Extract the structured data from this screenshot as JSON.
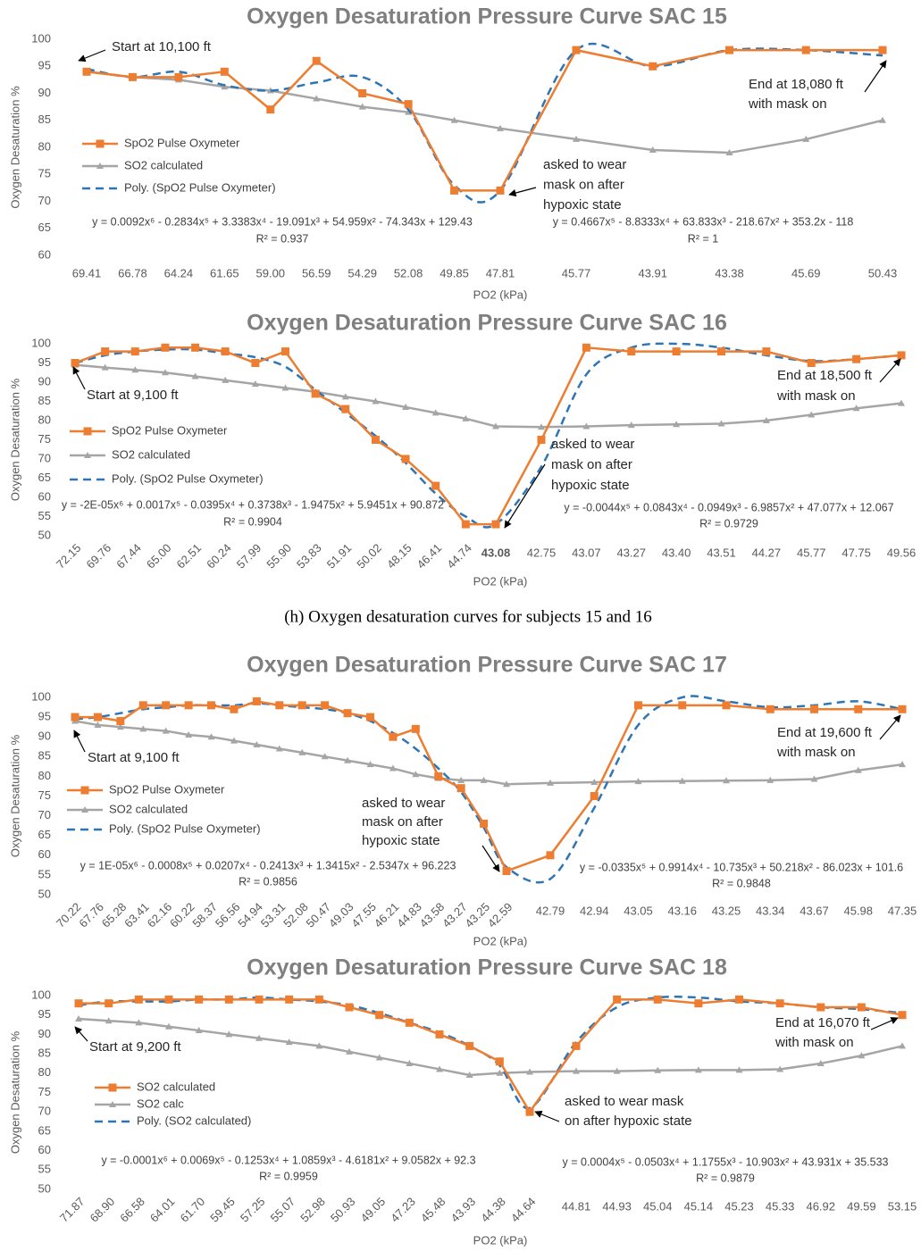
{
  "caption": "(h) Oxygen desaturation curves for subjects 15 and 16",
  "chart_data": [
    {
      "type": "line",
      "title": "Oxygen Desaturation Pressure Curve SAC 15",
      "x_label": "PO2 (kPa)",
      "y_label": "Oxygen Desaturation %",
      "categories": [
        "69.41",
        "66.78",
        "64.24",
        "61.65",
        "59.00",
        "56.59",
        "54.29",
        "52.08",
        "49.85",
        "47.81",
        "45.77",
        "43.91",
        "43.38",
        "45.69",
        "50.43"
      ],
      "ylim": [
        60,
        100
      ],
      "yticks": [
        60,
        65,
        70,
        75,
        80,
        85,
        90,
        95,
        100
      ],
      "grid": false,
      "series": [
        {
          "name": "SpO2 Pulse Oxymeter",
          "color": "#ed7d31",
          "marker": "square",
          "values": [
            94,
            93,
            93,
            94,
            87,
            96,
            90,
            88,
            72,
            72,
            98,
            95,
            98,
            98,
            98
          ]
        },
        {
          "name": "SO2 calculated",
          "color": "#a5a5a5",
          "marker": "triangle",
          "values": [
            94,
            93,
            92.5,
            91.2,
            90.5,
            89,
            87.5,
            86.5,
            85,
            83.5,
            81.5,
            79.5,
            79,
            81.5,
            85
          ]
        },
        {
          "name": "Poly. (SpO2 Pulse Oxymeter)",
          "color": "#2e75b6",
          "dashed": true,
          "smooth": true,
          "values": [
            94.5,
            93,
            94,
            91.5,
            90.5,
            92,
            93,
            87,
            73,
            72,
            98,
            95,
            98,
            98,
            97
          ]
        }
      ],
      "annotations": [
        [
          "Start at 10,100 ft"
        ],
        [
          "End at 18,080 ft",
          "with mask on"
        ],
        [
          "asked to wear",
          "mask on after",
          "hypoxic state"
        ]
      ],
      "equations": [
        {
          "equation": "y = 0.0092x⁶ - 0.2834x⁵ + 3.3383x⁴ - 19.091x³ + 54.959x² - 74.343x + 129.43",
          "r2": "R² = 0.937"
        },
        {
          "equation": "y = 0.4667x⁵ - 8.8333x⁴ + 63.833x³ - 218.67x² + 353.2x - 118",
          "r2": "R² = 1"
        }
      ]
    },
    {
      "type": "line",
      "title": "Oxygen Desaturation Pressure Curve SAC 16",
      "x_label": "PO2 (kPa)",
      "y_label": "Oxygen Desaturation %",
      "categories": [
        "72.15",
        "69.76",
        "67.44",
        "65.00",
        "62.51",
        "60.24",
        "57.99",
        "55.90",
        "53.83",
        "51.91",
        "50.02",
        "48.15",
        "46.41",
        "44.74",
        "43.08",
        "42.75",
        "43.07",
        "43.27",
        "43.40",
        "43.51",
        "44.27",
        "45.77",
        "47.75",
        "49.56"
      ],
      "ylim": [
        50,
        100
      ],
      "yticks": [
        50,
        55,
        60,
        65,
        70,
        75,
        80,
        85,
        90,
        95,
        100
      ],
      "grid": false,
      "series": [
        {
          "name": "SpO2 Pulse Oxymeter",
          "color": "#ed7d31",
          "marker": "square",
          "values": [
            95,
            98,
            98,
            99,
            99,
            98,
            95,
            98,
            87,
            83,
            75,
            70,
            63,
            53,
            53,
            75,
            99,
            98,
            98,
            98,
            98,
            95,
            96,
            97
          ]
        },
        {
          "name": "SO2 calculated",
          "color": "#a5a5a5",
          "marker": "triangle",
          "values": [
            94.5,
            93.8,
            93.2,
            92.5,
            91.5,
            90.5,
            89.5,
            88.5,
            87.5,
            86.2,
            85,
            83.5,
            82,
            80.5,
            78.5,
            78.3,
            78.5,
            78.8,
            79,
            79.2,
            80,
            81.5,
            83.2,
            84.5
          ]
        },
        {
          "name": "Poly. (SpO2 Pulse Oxymeter)",
          "color": "#2e75b6",
          "dashed": true,
          "smooth": true,
          "values": [
            95,
            97,
            98,
            98.5,
            98.5,
            97.5,
            96.5,
            94,
            88,
            82,
            76,
            69,
            61,
            55,
            53,
            68,
            92,
            99,
            100,
            99,
            97,
            95.5,
            96,
            97
          ]
        }
      ],
      "annotations": [
        [
          "Start at 9,100 ft"
        ],
        [
          "End at 18,500 ft",
          "with mask on"
        ],
        [
          "asked to wear",
          "mask on after",
          "hypoxic state"
        ]
      ],
      "equations": [
        {
          "equation": "y = -2E-05x⁶ + 0.0017x⁵ - 0.0395x⁴ + 0.3738x³ - 1.9475x² + 5.9451x + 90.872",
          "r2": "R² = 0.9904"
        },
        {
          "equation": "y = -0.0044x⁵ + 0.0843x⁴ - 0.0949x³ - 6.9857x² + 47.077x + 12.067",
          "r2": "R² = 0.9729"
        }
      ]
    },
    {
      "type": "line",
      "title": "Oxygen Desaturation Pressure Curve SAC 17",
      "x_label": "PO2 (kPa)",
      "y_label": "Oxygen Desaturation %",
      "categories": [
        "70.22",
        "67.76",
        "65.28",
        "63.41",
        "62.16",
        "60.22",
        "58.37",
        "56.56",
        "54.94",
        "53.31",
        "52.08",
        "50.47",
        "49.03",
        "47.55",
        "46.21",
        "44.83",
        "43.58",
        "43.27",
        "43.25",
        "42.59",
        "42.79",
        "42.94",
        "43.05",
        "43.16",
        "43.25",
        "43.34",
        "43.67",
        "45.98",
        "47.35"
      ],
      "ylim": [
        50,
        100
      ],
      "yticks": [
        50,
        55,
        60,
        65,
        70,
        75,
        80,
        85,
        90,
        95,
        100
      ],
      "grid": false,
      "series": [
        {
          "name": "SpO2 Pulse Oxymeter",
          "color": "#ed7d31",
          "marker": "square",
          "values": [
            95,
            95,
            94,
            98,
            98,
            98,
            98,
            97,
            99,
            98,
            98,
            98,
            96,
            95,
            90,
            92,
            80,
            77,
            68,
            56,
            60,
            75,
            98,
            98,
            98,
            97,
            97,
            97,
            97
          ]
        },
        {
          "name": "SO2 calculated",
          "color": "#a5a5a5",
          "marker": "triangle",
          "values": [
            94,
            93,
            92.5,
            92,
            91.5,
            90.5,
            90,
            89,
            88,
            87,
            86,
            85,
            84,
            83,
            82,
            80.5,
            79.5,
            79,
            79,
            78,
            78.3,
            78.5,
            78.7,
            78.8,
            78.9,
            79,
            79.3,
            81.5,
            83
          ]
        },
        {
          "name": "Poly. (SpO2 Pulse Oxymeter)",
          "color": "#2e75b6",
          "dashed": true,
          "smooth": true,
          "values": [
            94.5,
            95,
            96,
            97,
            97.5,
            98,
            98,
            98,
            98.5,
            98,
            97.5,
            97,
            96,
            94,
            91,
            87,
            82,
            76,
            67,
            57,
            54,
            72,
            93,
            100,
            99,
            97.5,
            98,
            99,
            97
          ]
        }
      ],
      "annotations": [
        [
          "Start at 9,100 ft"
        ],
        [
          "End at 19,600 ft",
          "with mask on"
        ],
        [
          "asked to wear",
          "mask on after",
          "hypoxic state"
        ]
      ],
      "equations": [
        {
          "equation": "y = 1E-05x⁶ - 0.0008x⁵ + 0.0207x⁴ - 0.2413x³ + 1.3415x² - 2.5347x + 96.223",
          "r2": "R² = 0.9856"
        },
        {
          "equation": "y = -0.0335x⁵ + 0.9914x⁴ - 10.735x³ + 50.218x² - 86.023x + 101.6",
          "r2": "R² = 0.9848"
        }
      ]
    },
    {
      "type": "line",
      "title": "Oxygen Desaturation Pressure Curve SAC 18",
      "x_label": "PO2 (kPa)",
      "y_label": "Oxygen Desaturation %",
      "categories": [
        "71.87",
        "68.90",
        "66.58",
        "64.01",
        "61.70",
        "59.45",
        "57.25",
        "55.07",
        "52.98",
        "50.93",
        "49.05",
        "47.23",
        "45.48",
        "43.93",
        "44.38",
        "44.64",
        "44.81",
        "44.93",
        "45.04",
        "45.14",
        "45.23",
        "45.33",
        "46.92",
        "49.59",
        "53.15"
      ],
      "ylim": [
        50,
        100
      ],
      "yticks": [
        50,
        55,
        60,
        65,
        70,
        75,
        80,
        85,
        90,
        95,
        100
      ],
      "grid": false,
      "series": [
        {
          "name": "SO2 calculated",
          "color": "#ed7d31",
          "marker": "square",
          "values": [
            98,
            98,
            99,
            99,
            99,
            99,
            99,
            99,
            99,
            97,
            95,
            93,
            90,
            87,
            83,
            70,
            87,
            99,
            99,
            98,
            99,
            98,
            97,
            97,
            95
          ]
        },
        {
          "name": "SO2 calc",
          "color": "#a5a5a5",
          "marker": "triangle",
          "values": [
            94,
            93.5,
            93,
            92,
            91,
            90,
            89,
            88,
            87,
            85.5,
            84,
            82.5,
            81,
            79.5,
            80,
            80.3,
            80.5,
            80.5,
            80.7,
            80.8,
            80.8,
            81,
            82.5,
            84.5,
            87
          ]
        },
        {
          "name": "Poly. (SO2 calculated)",
          "color": "#2e75b6",
          "dashed": true,
          "smooth": true,
          "values": [
            97.5,
            98.5,
            98.5,
            98.5,
            99,
            99,
            99.5,
            99,
            98.5,
            97.5,
            95.5,
            93,
            90.5,
            87,
            82,
            71,
            88,
            97,
            99.5,
            99.5,
            98.5,
            98,
            97,
            96.5,
            95.5
          ]
        }
      ],
      "annotations": [
        [
          "Start at 9,200 ft"
        ],
        [
          "End at 16,070 ft",
          "with mask on"
        ],
        [
          "asked to wear mask",
          "on after hypoxic state"
        ]
      ],
      "equations": [
        {
          "equation": "y = -0.0001x⁶ + 0.0069x⁵ - 0.1253x⁴ + 1.0859x³ - 4.6181x² + 9.0582x + 92.3",
          "r2": "R² = 0.9959"
        },
        {
          "equation": "y = 0.0004x⁵ - 0.0503x⁴ + 1.1755x³ - 10.903x² + 43.931x + 35.533",
          "r2": "R² = 0.9879"
        }
      ]
    }
  ]
}
